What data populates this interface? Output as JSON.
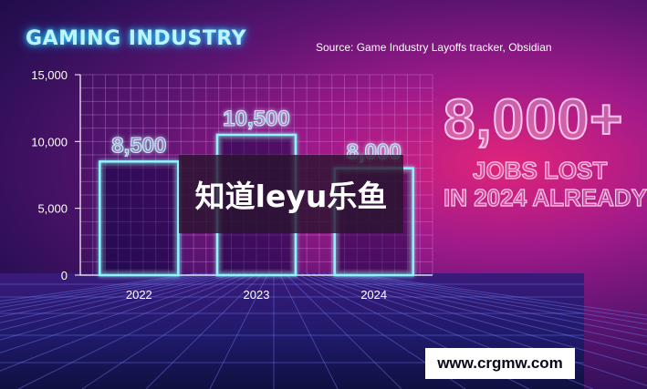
{
  "header": {
    "title": "GAMING INDUSTRY",
    "source": "Source: Game Industry Layoffs tracker, Obsidian"
  },
  "callout": {
    "big_number": "8,000+",
    "line1": "JOBS LOST",
    "line2": "IN 2024 ALREADY"
  },
  "overlay": {
    "watermark_text": "知道leyu乐鱼",
    "url": "www.crgmw.com"
  },
  "chart_data": {
    "type": "bar",
    "categories": [
      "2022",
      "2023",
      "2024"
    ],
    "values": [
      8500,
      10500,
      8000
    ],
    "value_labels": [
      "8,500",
      "10,500",
      "8,000"
    ],
    "ylim": [
      0,
      15000
    ],
    "yticks": [
      0,
      5000,
      10000,
      15000
    ],
    "ytick_labels": [
      "0",
      "5,000",
      "10,000",
      "15,000"
    ],
    "title": "GAMING INDUSTRY",
    "xlabel": "",
    "ylabel": "",
    "grid": true
  },
  "colors": {
    "bar_stroke": "#8ff6ff",
    "value_label": "#bff3ff",
    "tick_label": "#ffffff",
    "grid": "#d78ce8"
  }
}
